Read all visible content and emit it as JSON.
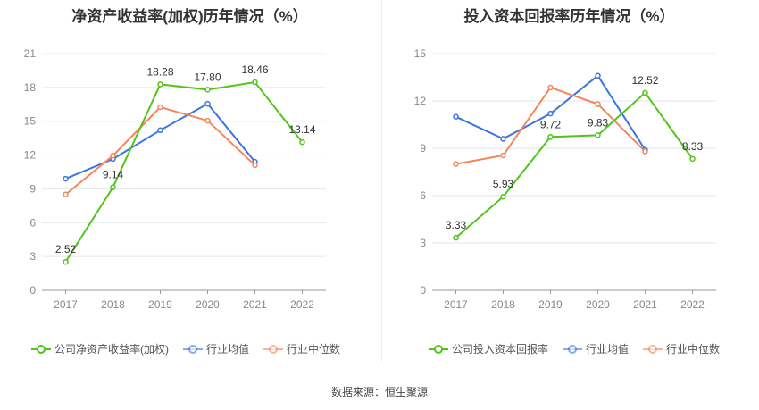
{
  "source": "数据来源：恒生聚源",
  "chart_data": [
    {
      "type": "line",
      "title": "净资产收益率(加权)历年情况（%）",
      "categories": [
        "2017",
        "2018",
        "2019",
        "2020",
        "2021",
        "2022"
      ],
      "ylim": [
        0,
        21
      ],
      "yticks": [
        0,
        3,
        6,
        9,
        12,
        15,
        18,
        21
      ],
      "grid": true,
      "legend": "bottom",
      "series": [
        {
          "name": "公司净资产收益率(加权)",
          "color": "#52c41a",
          "values": [
            2.52,
            9.14,
            18.28,
            17.8,
            18.46,
            13.14
          ],
          "labels": [
            "2.52",
            "9.14",
            "18.28",
            "17.80",
            "18.46",
            "13.14"
          ]
        },
        {
          "name": "行业均值",
          "color": "#3a75e0",
          "values": [
            9.9,
            11.65,
            14.2,
            16.55,
            11.4,
            null
          ]
        },
        {
          "name": "行业中位数",
          "color": "#f5855a",
          "values": [
            8.5,
            11.95,
            16.25,
            15.05,
            11.1,
            null
          ]
        }
      ]
    },
    {
      "type": "line",
      "title": "投入资本回报率历年情况（%）",
      "categories": [
        "2017",
        "2018",
        "2019",
        "2020",
        "2021",
        "2022"
      ],
      "ylim": [
        0,
        15
      ],
      "yticks": [
        0,
        3,
        6,
        9,
        12,
        15
      ],
      "grid": true,
      "legend": "bottom",
      "series": [
        {
          "name": "公司投入资本回报率",
          "color": "#52c41a",
          "values": [
            3.33,
            5.93,
            9.72,
            9.83,
            12.52,
            8.33
          ],
          "labels": [
            "3.33",
            "5.93",
            "9.72",
            "9.83",
            "12.52",
            "8.33"
          ]
        },
        {
          "name": "行业均值",
          "color": "#3a75e0",
          "values": [
            11.0,
            9.6,
            11.2,
            13.6,
            8.9,
            null
          ]
        },
        {
          "name": "行业中位数",
          "color": "#f5855a",
          "values": [
            8.0,
            8.55,
            12.85,
            11.8,
            8.8,
            null
          ]
        }
      ]
    }
  ]
}
